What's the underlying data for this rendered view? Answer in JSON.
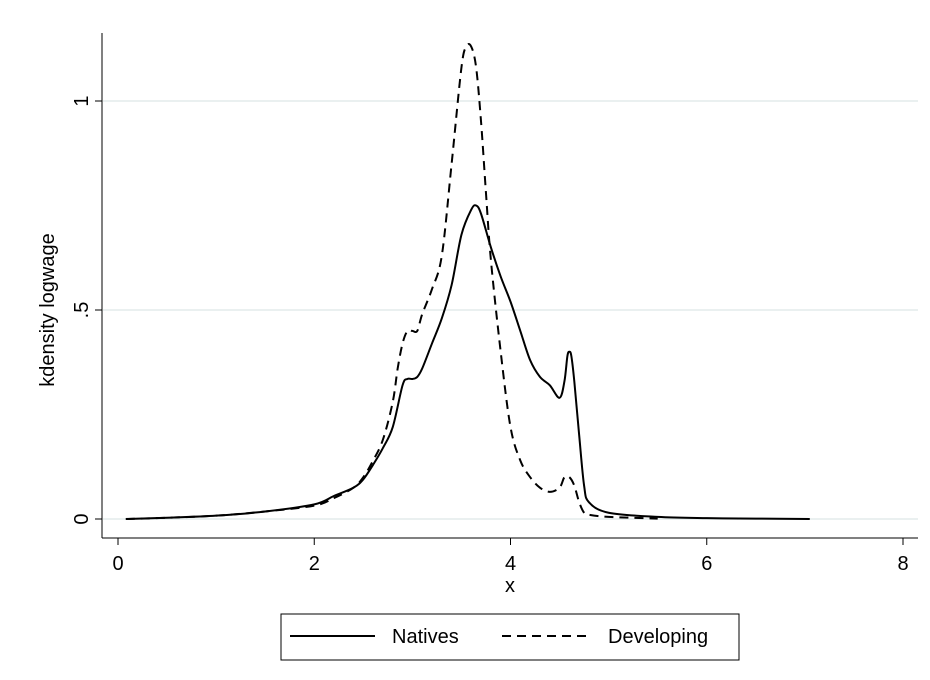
{
  "chart_data": {
    "type": "line",
    "title": "",
    "xlabel": "x",
    "ylabel": "kdensity logwage",
    "xlim": [
      0,
      8
    ],
    "ylim": [
      0,
      1.15
    ],
    "x_ticks": [
      0,
      2,
      4,
      6,
      8
    ],
    "x_tick_labels": [
      "0",
      "2",
      "4",
      "6",
      "8"
    ],
    "y_ticks": [
      0,
      0.5,
      1
    ],
    "y_tick_labels": [
      "0",
      ".5",
      "1"
    ],
    "grid": "horizontal",
    "legend_position": "bottom",
    "series": [
      {
        "name": "Natives",
        "dash": "solid",
        "color": "#000000",
        "x": [
          0.08,
          0.5,
          1.0,
          1.5,
          2.0,
          2.2,
          2.4,
          2.5,
          2.6,
          2.7,
          2.8,
          2.9,
          2.95,
          3.0,
          3.05,
          3.1,
          3.2,
          3.3,
          3.4,
          3.5,
          3.6,
          3.65,
          3.7,
          3.8,
          3.9,
          4.0,
          4.1,
          4.2,
          4.3,
          4.4,
          4.5,
          4.55,
          4.58,
          4.6,
          4.62,
          4.65,
          4.7,
          4.75,
          4.8,
          5.0,
          5.5,
          6.0,
          6.5,
          7.05
        ],
        "y": [
          0.0,
          0.003,
          0.008,
          0.018,
          0.035,
          0.055,
          0.075,
          0.095,
          0.13,
          0.17,
          0.22,
          0.32,
          0.335,
          0.335,
          0.34,
          0.36,
          0.42,
          0.48,
          0.56,
          0.68,
          0.74,
          0.75,
          0.73,
          0.65,
          0.58,
          0.52,
          0.45,
          0.38,
          0.34,
          0.32,
          0.29,
          0.33,
          0.39,
          0.4,
          0.39,
          0.33,
          0.2,
          0.08,
          0.04,
          0.015,
          0.005,
          0.002,
          0.001,
          0.0
        ]
      },
      {
        "name": "Developing",
        "dash": "dashed",
        "color": "#000000",
        "x": [
          0.08,
          0.5,
          1.0,
          1.5,
          2.0,
          2.2,
          2.4,
          2.5,
          2.6,
          2.7,
          2.8,
          2.85,
          2.9,
          2.95,
          3.0,
          3.05,
          3.1,
          3.2,
          3.3,
          3.4,
          3.5,
          3.55,
          3.6,
          3.65,
          3.7,
          3.75,
          3.8,
          3.9,
          4.0,
          4.1,
          4.2,
          4.3,
          4.4,
          4.5,
          4.55,
          4.6,
          4.65,
          4.7,
          4.75,
          4.8,
          5.0,
          5.5
        ],
        "y": [
          0.0,
          0.003,
          0.008,
          0.018,
          0.032,
          0.05,
          0.075,
          0.1,
          0.14,
          0.19,
          0.28,
          0.36,
          0.42,
          0.45,
          0.45,
          0.45,
          0.49,
          0.55,
          0.63,
          0.85,
          1.08,
          1.13,
          1.13,
          1.08,
          0.95,
          0.78,
          0.62,
          0.4,
          0.22,
          0.14,
          0.1,
          0.075,
          0.065,
          0.075,
          0.1,
          0.1,
          0.08,
          0.04,
          0.015,
          0.01,
          0.005,
          0.001
        ]
      }
    ]
  }
}
